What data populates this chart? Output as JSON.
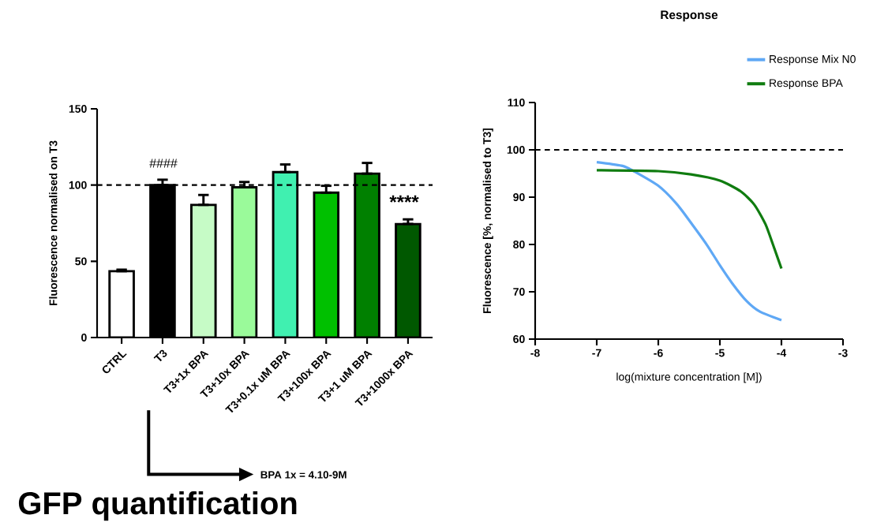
{
  "chart_data": [
    {
      "type": "bar",
      "title": "GFP quantification",
      "ylabel": "Fluorescence normalised on T3",
      "categories": [
        "CTRL",
        "T3",
        "T3+1x BPA",
        "T3+10x BPA",
        "T3+0.1x uM BPA",
        "T3+100x BPA",
        "T3+1 uM BPA",
        "T3+1000x BPA"
      ],
      "values": [
        43.5,
        100,
        87,
        98.5,
        108.5,
        95,
        107.5,
        74.5
      ],
      "errors": [
        [
          43.5,
          44.5
        ],
        [
          100,
          103.5
        ],
        [
          87,
          93.5
        ],
        [
          98.5,
          102
        ],
        [
          108.5,
          113.5
        ],
        [
          95,
          99.5
        ],
        [
          107.5,
          114.5
        ],
        [
          74.5,
          77.5
        ]
      ],
      "colors": [
        "#ffffff",
        "#000000",
        "#c6fbc6",
        "#9afa9a",
        "#40f0b0",
        "#00c000",
        "#008000",
        "#005800"
      ],
      "ylim": [
        0,
        150
      ],
      "yticks": [
        0,
        50,
        100,
        150
      ],
      "ref_lines": [
        {
          "axis": "y",
          "value": 100,
          "line_style": "dashed"
        }
      ],
      "annotations": [
        "####",
        "****",
        "BPA 1x = 4.10-9M"
      ]
    },
    {
      "type": "line",
      "title": "Response",
      "xlabel": "log(mixture concentration [M])",
      "ylabel": "Fluorescence [%, normalised to T3]",
      "xlim": [
        -8,
        -3
      ],
      "xticks": [
        -8,
        -7,
        -6,
        -5,
        -4,
        -3
      ],
      "ylim": [
        60,
        110
      ],
      "yticks": [
        60,
        70,
        80,
        90,
        100,
        110
      ],
      "legend": "top right",
      "line_style": "solid",
      "ref_lines": [
        {
          "axis": "y",
          "value": 100,
          "line_style": "dashed"
        }
      ],
      "series": [
        {
          "name": "Response Mix N0",
          "color": "#5fa8f5",
          "x": [
            -7.0,
            -6.58,
            -6.4,
            -6.0,
            -5.69,
            -5.42,
            -5.2,
            -5.0,
            -4.8,
            -4.57,
            -4.35,
            -4.0
          ],
          "values": [
            97.4,
            96.6,
            95.5,
            92.4,
            88.4,
            83.7,
            79.7,
            75.6,
            71.8,
            68.1,
            65.8,
            64.0
          ]
        },
        {
          "name": "Response BPA",
          "color": "#107c10",
          "x": [
            -7.0,
            -6.0,
            -5.47,
            -5.0,
            -4.66,
            -4.44,
            -4.26,
            -4.13,
            -4.0
          ],
          "values": [
            95.7,
            95.5,
            94.8,
            93.5,
            91.2,
            88.4,
            84.3,
            79.7,
            74.9
          ]
        }
      ]
    }
  ]
}
